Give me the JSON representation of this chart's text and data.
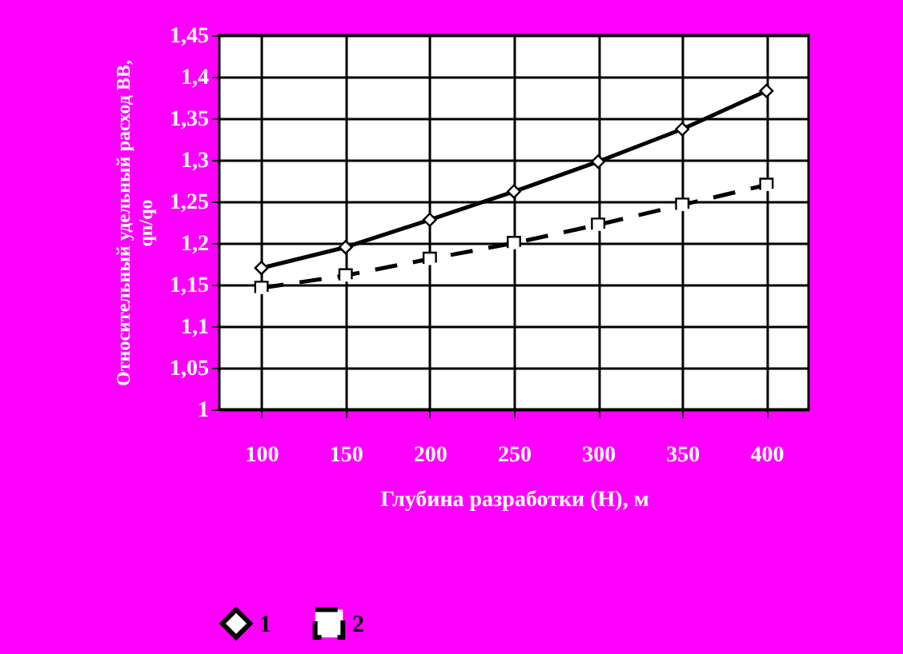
{
  "chart_data": {
    "type": "line",
    "xlabel": "Глубина разработки (Н), м",
    "ylabel": "Относительный удельный расход ВВ,\nqп/qо",
    "categories": [
      "100",
      "150",
      "200",
      "250",
      "300",
      "350",
      "400"
    ],
    "series": [
      {
        "name": "1",
        "color": "#000000",
        "marker": "diamond",
        "line_style": "solid",
        "values": [
          1.17,
          1.195,
          1.228,
          1.262,
          1.298,
          1.337,
          1.383
        ]
      },
      {
        "name": "2",
        "color": "#000000",
        "marker": "square",
        "line_style": "dashed",
        "values": [
          1.146,
          1.161,
          1.181,
          1.2,
          1.222,
          1.246,
          1.27
        ]
      }
    ],
    "ylim": [
      1,
      1.45
    ],
    "yticks": [
      {
        "value": 1,
        "label": "1"
      },
      {
        "value": 1.05,
        "label": "1,05"
      },
      {
        "value": 1.1,
        "label": "1,1"
      },
      {
        "value": 1.15,
        "label": "1,15"
      },
      {
        "value": 1.2,
        "label": "1,2"
      },
      {
        "value": 1.25,
        "label": "1,25"
      },
      {
        "value": 1.3,
        "label": "1,3"
      },
      {
        "value": 1.35,
        "label": "1,35"
      },
      {
        "value": 1.4,
        "label": "1,4"
      },
      {
        "value": 1.45,
        "label": "1,45"
      }
    ],
    "grid": true,
    "legend": "bottom"
  }
}
